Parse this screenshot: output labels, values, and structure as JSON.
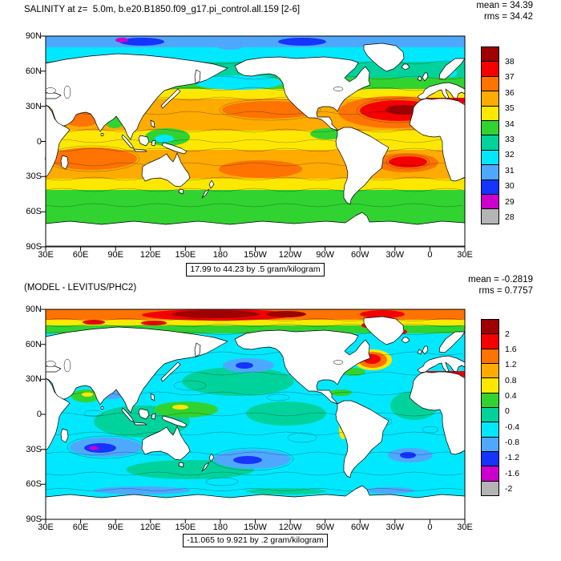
{
  "figure": {
    "background": "#ffffff",
    "axes": {
      "lon_ticks": [
        "30E",
        "60E",
        "90E",
        "120E",
        "150E",
        "180",
        "150W",
        "120W",
        "90W",
        "60W",
        "30W",
        "0",
        "30E"
      ],
      "lat_ticks": [
        "90N",
        "60N",
        "30N",
        "0",
        "30S",
        "60S",
        "90S"
      ]
    },
    "palette": {
      "darkred": "#9e0000",
      "red": "#f40000",
      "orange": "#ff7300",
      "amber": "#ffab00",
      "yellow": "#ffe800",
      "green": "#31d331",
      "teal": "#00d29b",
      "cyan": "#00e8ff",
      "lightblue": "#4fa8ff",
      "blue": "#1633ff",
      "magenta": "#cc00cc",
      "gray": "#b4b4b4",
      "land": "#ffffff",
      "coast": "#000000"
    },
    "panels": [
      {
        "title": "SALINITY at z=  5.0m, b.e20.B1850.f09_g17.pi_control.all.159 [2-6]",
        "mean_label": "mean = 34.39",
        "rms_label": "rms = 34.42",
        "caption": "17.99 to 44.23 by .5 gram/kilogram",
        "colorbar_labels": [
          "38",
          "37",
          "36",
          "35",
          "34",
          "33",
          "32",
          "31",
          "30",
          "29",
          "28"
        ]
      },
      {
        "title": "(MODEL - LEVITUS/PHC2)",
        "mean_label": "mean = -0.2819",
        "rms_label": "rms = 0.7757",
        "caption": "-11.065 to 9.921 by .2 gram/kilogram",
        "colorbar_labels": [
          "2",
          "1.6",
          "1.2",
          "0.8",
          "0.4",
          "0",
          "-0.4",
          "-0.8",
          "-1.2",
          "-1.6",
          "-2"
        ]
      }
    ]
  },
  "chart_data": [
    {
      "type": "heatmap",
      "title": "SALINITY at z=  5.0m, b.e20.B1850.f09_g17.pi_control.all.159 [2-6]",
      "variable": "SALINITY",
      "depth": "5.0m",
      "units": "gram/kilogram",
      "mean": 34.39,
      "rms": 34.42,
      "data_min": 17.99,
      "data_max": 44.23,
      "contour_interval": 0.5,
      "x_ticks": [
        "30E",
        "60E",
        "90E",
        "120E",
        "150E",
        "180",
        "150W",
        "120W",
        "90W",
        "60W",
        "30W",
        "0",
        "30E"
      ],
      "y_ticks": [
        "90N",
        "60N",
        "30N",
        "0",
        "30S",
        "60S",
        "90S"
      ],
      "x_range": "global longitudes, Pacific-centered (left edge 30E)",
      "y_range": "90S to 90N",
      "legend_position": "right",
      "grid": false,
      "colorbar_levels": [
        38,
        37,
        36,
        35,
        34,
        33,
        32,
        31,
        30,
        29,
        28
      ],
      "colorbar_colors_top_to_bottom": [
        "#9e0000",
        "#f40000",
        "#ff7300",
        "#ffab00",
        "#ffe800",
        "#31d331",
        "#00d29b",
        "#00e8ff",
        "#4fa8ff",
        "#1633ff",
        "#cc00cc",
        "#b4b4b4"
      ],
      "approx_zonal_values": [
        {
          "lat": "80N",
          "psu": 30.5
        },
        {
          "lat": "60N",
          "psu": 32.5
        },
        {
          "lat": "45N",
          "psu": 33.8
        },
        {
          "lat": "30N",
          "psu": 35.6
        },
        {
          "lat": "25N Atlantic max",
          "psu": 37.5
        },
        {
          "lat": "0",
          "psu": 34.9
        },
        {
          "lat": "20S",
          "psu": 35.8
        },
        {
          "lat": "45S",
          "psu": 34.3
        },
        {
          "lat": "60S",
          "psu": 33.8
        }
      ]
    },
    {
      "type": "heatmap",
      "title": "(MODEL - LEVITUS/PHC2)",
      "variable": "SALINITY difference (model minus observations)",
      "units": "gram/kilogram",
      "mean": -0.2819,
      "rms": 0.7757,
      "data_min": -11.065,
      "data_max": 9.921,
      "contour_interval": 0.2,
      "x_ticks": [
        "30E",
        "60E",
        "90E",
        "120E",
        "150E",
        "180",
        "150W",
        "120W",
        "90W",
        "60W",
        "30W",
        "0",
        "30E"
      ],
      "y_ticks": [
        "90N",
        "60N",
        "30N",
        "0",
        "30S",
        "60S",
        "90S"
      ],
      "x_range": "global longitudes, Pacific-centered (left edge 30E)",
      "y_range": "90S to 90N",
      "legend_position": "right",
      "grid": false,
      "colorbar_levels": [
        2,
        1.6,
        1.2,
        0.8,
        0.4,
        0,
        -0.4,
        -0.8,
        -1.2,
        -1.6,
        -2
      ],
      "colorbar_colors_top_to_bottom": [
        "#9e0000",
        "#f40000",
        "#ff7300",
        "#ffab00",
        "#ffe800",
        "#31d331",
        "#00d29b",
        "#00e8ff",
        "#4fa8ff",
        "#1633ff",
        "#cc00cc",
        "#b4b4b4"
      ],
      "approx_regional_bias": [
        {
          "region": "Arctic Ocean",
          "bias": "+0.8 to +2"
        },
        {
          "region": "most mid and low latitude oceans",
          "bias": "-0.2 to -0.6"
        },
        {
          "region": "southern subtropical gyres (Indian, Pacific, Atlantic)",
          "bias": "-0.8 to -1.8"
        },
        {
          "region": "NW Atlantic boundary / Mediterranean",
          "bias": "+1 to +2"
        },
        {
          "region": "western equatorial Pacific",
          "bias": "0 to +0.6"
        }
      ]
    }
  ]
}
